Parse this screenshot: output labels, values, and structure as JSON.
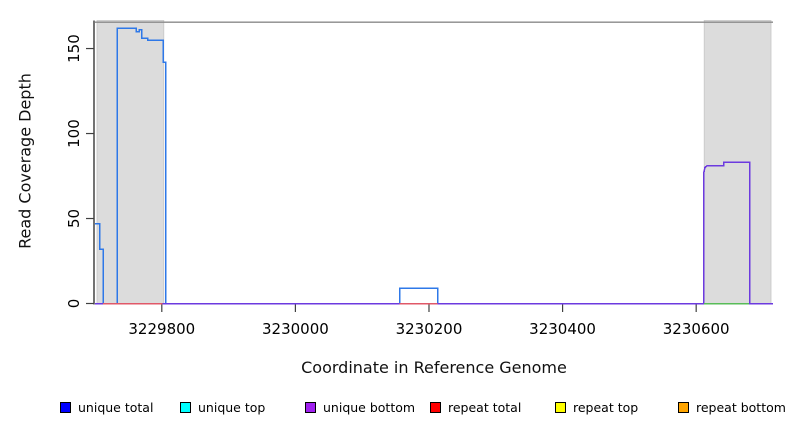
{
  "chart_data": {
    "type": "line",
    "title": "",
    "xlabel": "Coordinate in Reference Genome",
    "ylabel": "Read Coverage Depth",
    "xlim": [
      3229700,
      3230715
    ],
    "ylim": [
      0,
      166.5
    ],
    "x_ticks": [
      3229800,
      3230000,
      3230200,
      3230400,
      3230600
    ],
    "y_ticks": [
      0,
      50,
      100,
      150
    ],
    "grid": false,
    "legend_position": "bottom",
    "band_fill": "#dcdcdc",
    "band_edge": "#c6c6c6",
    "top_rule_value": 165.5,
    "top_rule_color": "#8a8a8a",
    "highlight_bands": [
      {
        "name": "left",
        "from": 3229703,
        "to": 3229803
      },
      {
        "name": "right",
        "from": 3230612,
        "to": 3230712
      }
    ],
    "series": [
      {
        "name": "unique total",
        "color": "#2e78e8",
        "paths": [
          [
            [
              3229700,
              47
            ],
            [
              3229707,
              47
            ],
            [
              3229707,
              32
            ],
            [
              3229712,
              32
            ],
            [
              3229712,
              0
            ],
            [
              3229733,
              0
            ],
            [
              3229733,
              162
            ],
            [
              3229762,
              162
            ],
            [
              3229762,
              160
            ],
            [
              3229766,
              160
            ],
            [
              3229766,
              161
            ],
            [
              3229770,
              161
            ],
            [
              3229770,
              156
            ],
            [
              3229779,
              156
            ],
            [
              3229779,
              155
            ],
            [
              3229802,
              155
            ],
            [
              3229802,
              142
            ],
            [
              3229806,
              142
            ],
            [
              3229806,
              0
            ],
            [
              3230156,
              0
            ],
            [
              3230156,
              9
            ],
            [
              3230213,
              9
            ],
            [
              3230213,
              0
            ],
            [
              3230715,
              0
            ]
          ]
        ]
      },
      {
        "name": "unique bottom",
        "color": "#6c3adf",
        "paths": [
          [
            [
              3229700,
              0
            ],
            [
              3230611,
              0
            ],
            [
              3230611,
              76
            ],
            [
              3230613,
              80
            ],
            [
              3230616,
              81
            ],
            [
              3230641,
              81
            ],
            [
              3230641,
              83
            ],
            [
              3230680,
              83
            ],
            [
              3230680,
              0
            ],
            [
              3230715,
              0
            ]
          ]
        ]
      },
      {
        "name": "green baseline",
        "color": "#58bc58",
        "paths": [
          [
            [
              3230612,
              0
            ],
            [
              3230679,
              0
            ]
          ]
        ]
      },
      {
        "name": "repeat total",
        "color": "#e05868",
        "paths": [
          [
            [
              3229712,
              0
            ],
            [
              3229801,
              0
            ]
          ],
          [
            [
              3230156,
              0
            ],
            [
              3230213,
              0
            ]
          ]
        ]
      }
    ],
    "legend": [
      {
        "label": "unique total",
        "color": "#0000ff"
      },
      {
        "label": "unique top",
        "color": "#00ffff"
      },
      {
        "label": "unique bottom",
        "color": "#a020f0"
      },
      {
        "label": "repeat total",
        "color": "#ff0000"
      },
      {
        "label": "repeat top",
        "color": "#ffff00"
      },
      {
        "label": "repeat bottom",
        "color": "#ffa500"
      }
    ]
  }
}
